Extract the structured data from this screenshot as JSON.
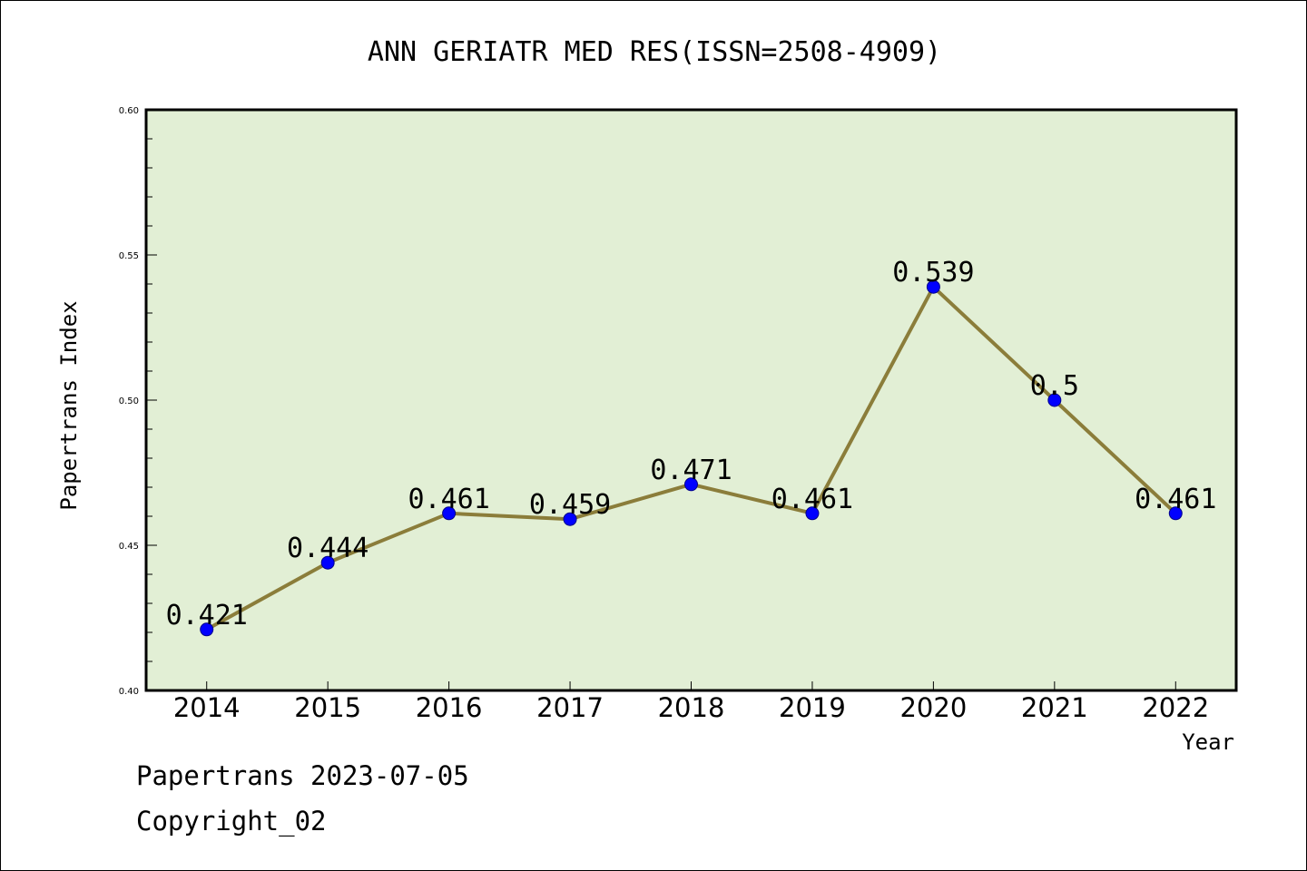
{
  "chart_data": {
    "type": "line",
    "title": "ANN GERIATR MED RES(ISSN=2508-4909)",
    "xlabel": "Year",
    "ylabel": "Papertrans Index",
    "categories": [
      "2014",
      "2015",
      "2016",
      "2017",
      "2018",
      "2019",
      "2020",
      "2021",
      "2022"
    ],
    "values": [
      0.421,
      0.444,
      0.461,
      0.459,
      0.471,
      0.461,
      0.539,
      0.5,
      0.461
    ],
    "data_labels": [
      "0.421",
      "0.444",
      "0.461",
      "0.459",
      "0.471",
      "0.461",
      "0.539",
      "0.5",
      "0.461"
    ],
    "ylim": [
      0.4,
      0.6
    ],
    "yticks": [
      "0.40",
      "0.45",
      "0.50",
      "0.55",
      "0.60"
    ],
    "grid": false,
    "colors": {
      "plot_background": "#e2efd5",
      "line": "#8b7d3a",
      "marker": "#0000ff",
      "axes": "#000000"
    }
  },
  "footer": {
    "line1": "Papertrans 2023-07-05",
    "line2": "Copyright_02"
  }
}
